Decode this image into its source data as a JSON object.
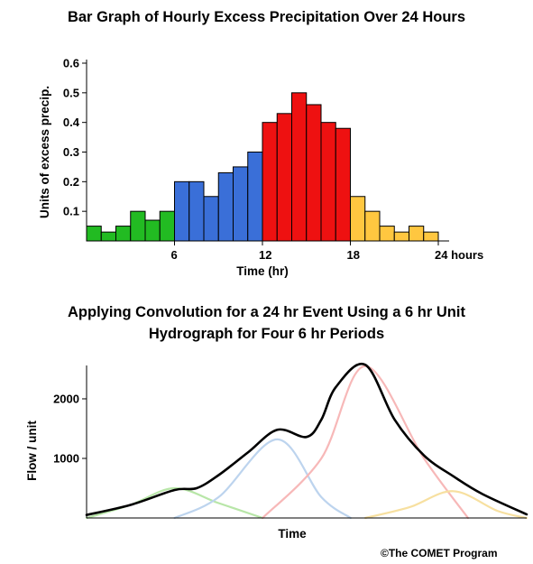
{
  "chart_data": [
    {
      "type": "bar",
      "title": "Bar Graph of Hourly Excess Precipitation Over 24 Hours",
      "xlabel": "Time (hr)",
      "ylabel": "Units of excess precip.",
      "ylim": [
        0,
        0.6
      ],
      "xlim": [
        0,
        24
      ],
      "yticks": [
        "0.1",
        "0.2",
        "0.3",
        "0.4",
        "0.5",
        "0.6"
      ],
      "xticks": [
        "6",
        "12",
        "18",
        "24 hours"
      ],
      "grid": false,
      "colors": [
        "#22bb22",
        "#3a6fd8",
        "#ee1111",
        "#ffc740"
      ],
      "values": [
        0.05,
        0.03,
        0.05,
        0.1,
        0.07,
        0.1,
        0.2,
        0.2,
        0.15,
        0.23,
        0.25,
        0.3,
        0.4,
        0.43,
        0.5,
        0.46,
        0.4,
        0.38,
        0.15,
        0.1,
        0.05,
        0.03,
        0.05,
        0.03
      ]
    },
    {
      "type": "line",
      "title": "Applying Convolution for a 24 hr Event Using a 6 hr Unit Hydrograph for Four 6 hr Periods",
      "title_lines": [
        "Applying Convolution for a 24 hr Event Using a 6 hr Unit",
        "Hydrograph for Four 6 hr Periods"
      ],
      "xlabel": "Time",
      "ylabel": "Flow / unit",
      "yticks": [
        1000,
        2000
      ],
      "ylim": [
        0,
        2560
      ],
      "xlim": [
        0,
        30
      ],
      "series": [
        {
          "color": "#b8e6a8",
          "x": [
            0,
            3,
            6,
            9,
            12
          ],
          "y": [
            0,
            220,
            500,
            250,
            0
          ]
        },
        {
          "color": "#bdd4ee",
          "x": [
            6,
            9,
            13,
            16,
            18
          ],
          "y": [
            0,
            350,
            1320,
            350,
            0
          ]
        },
        {
          "color": "#f7b8b8",
          "x": [
            12,
            16,
            19,
            23,
            26
          ],
          "y": [
            0,
            1000,
            2550,
            1000,
            0
          ]
        },
        {
          "color": "#f7e0a0",
          "x": [
            19,
            22,
            25,
            28,
            30
          ],
          "y": [
            0,
            180,
            450,
            120,
            0
          ]
        },
        {
          "color": "#000000",
          "x": [
            0,
            3,
            6,
            7.5,
            9,
            11,
            13,
            15,
            16,
            17,
            19,
            21,
            23,
            25,
            27,
            30
          ],
          "y": [
            50,
            220,
            470,
            500,
            720,
            1100,
            1480,
            1360,
            1650,
            2200,
            2570,
            1650,
            1050,
            700,
            400,
            60
          ]
        }
      ]
    }
  ],
  "credit": "©The COMET Program"
}
